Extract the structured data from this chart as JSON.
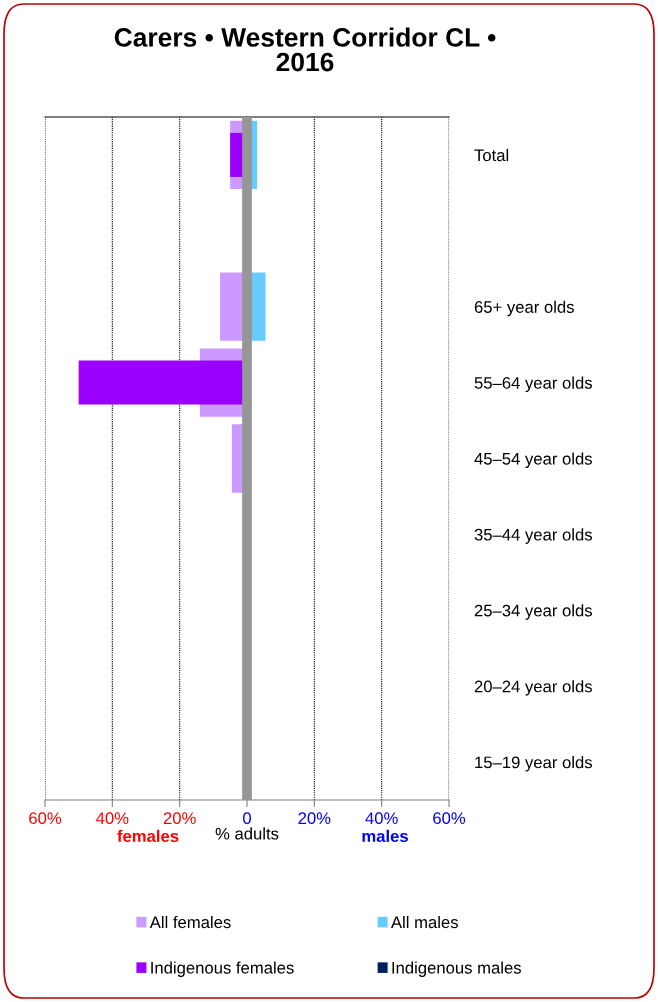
{
  "chart_data": {
    "type": "bar",
    "orientation": "horizontal",
    "title": "Carers • Western Corridor CL • 2016",
    "categories": [
      "Total",
      null,
      "65+ year olds",
      "55–64 year olds",
      "45–54 year olds",
      "35–44 year olds",
      "25–34 year olds",
      "20–24 year olds",
      "15–19 year olds"
    ],
    "series": [
      {
        "name": "All females",
        "color": "#cc99ff",
        "values": [
          -5,
          0,
          -8,
          -14,
          -4.5,
          0,
          0,
          0,
          0
        ]
      },
      {
        "name": "All males",
        "color": "#66ccff",
        "values": [
          3,
          0,
          5.5,
          0,
          0,
          0,
          0,
          0,
          0
        ]
      },
      {
        "name": "Indigenous females",
        "color": "#9900ff",
        "values": [
          -5,
          0,
          0,
          -50,
          0,
          0,
          0,
          0,
          0
        ]
      },
      {
        "name": "Indigenous males",
        "color": "#002060",
        "values": [
          0,
          0,
          0,
          0,
          0,
          0,
          0,
          0,
          0
        ]
      }
    ],
    "xlim": [
      -60,
      60
    ],
    "xticks": [
      {
        "value": -60,
        "label": "60%"
      },
      {
        "value": -40,
        "label": "40%"
      },
      {
        "value": -20,
        "label": "20%"
      },
      0,
      {
        "value": 20,
        "label": "20%"
      },
      {
        "value": 40,
        "label": "40%"
      },
      {
        "value": 60,
        "label": "60%"
      }
    ],
    "xlabel": "% adults",
    "annotations": [
      "females",
      "males"
    ],
    "ref_lines": [
      {
        "axis": "x",
        "value": 0,
        "color": "#969696"
      }
    ],
    "grid": "x",
    "legend": "bottom"
  }
}
